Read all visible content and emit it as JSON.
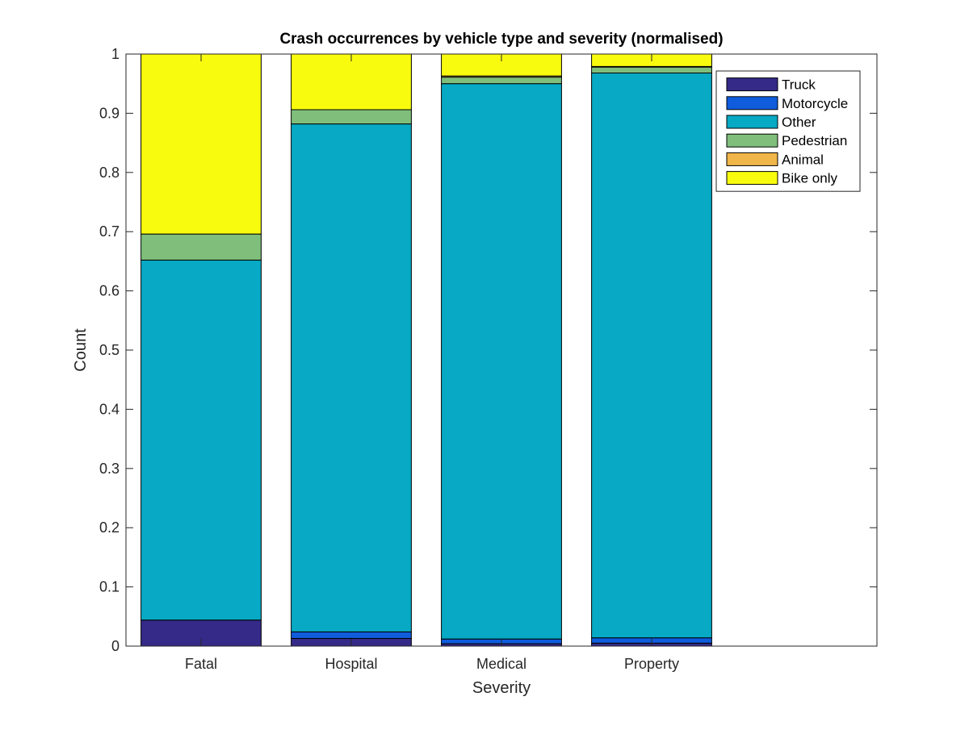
{
  "chart_data": {
    "type": "bar",
    "stacked": true,
    "title": "Crash occurrences by vehicle type and severity (normalised)",
    "xlabel": "Severity",
    "ylabel": "Count",
    "ylim": [
      0,
      1
    ],
    "xlim": [
      0.5,
      5.5
    ],
    "yticks": [
      0,
      0.1,
      0.2,
      0.3,
      0.4,
      0.5,
      0.6,
      0.7,
      0.8,
      0.9,
      1
    ],
    "ytick_labels": [
      "0",
      "0.1",
      "0.2",
      "0.3",
      "0.4",
      "0.5",
      "0.6",
      "0.7",
      "0.8",
      "0.9",
      "1"
    ],
    "categories": [
      "Fatal",
      "Hospital",
      "Medical",
      "Property"
    ],
    "grid": false,
    "legend_position": "top-right",
    "series": [
      {
        "name": "Truck",
        "color": "#352a87",
        "values": [
          0.044,
          0.013,
          0.004,
          0.005
        ]
      },
      {
        "name": "Motorcycle",
        "color": "#0f5cdd",
        "values": [
          0.0,
          0.011,
          0.008,
          0.009
        ]
      },
      {
        "name": "Other",
        "color": "#07a9c4",
        "values": [
          0.608,
          0.858,
          0.938,
          0.954
        ]
      },
      {
        "name": "Pedestrian",
        "color": "#7fbf7b",
        "values": [
          0.044,
          0.024,
          0.011,
          0.01
        ]
      },
      {
        "name": "Animal",
        "color": "#f0b649",
        "values": [
          0.0,
          0.0,
          0.002,
          0.001
        ]
      },
      {
        "name": "Bike only",
        "color": "#f9fb0e",
        "values": [
          0.304,
          0.094,
          0.037,
          0.021
        ]
      }
    ]
  }
}
